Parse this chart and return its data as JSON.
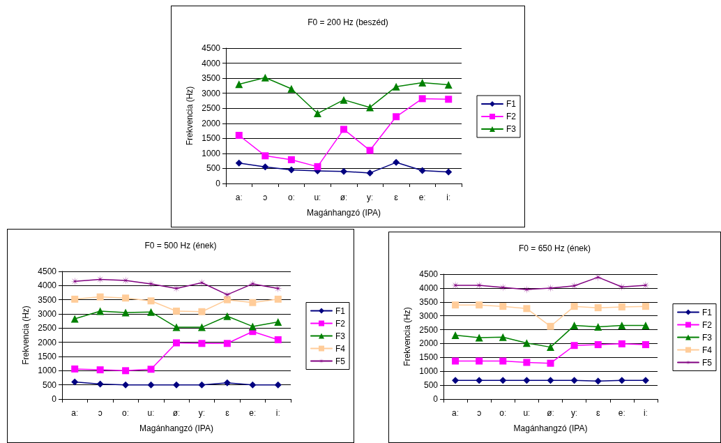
{
  "chart_data": [
    {
      "type": "line",
      "title": "F0 = 200 Hz (beszéd)",
      "xlabel": "Magánhangzó (IPA)",
      "ylabel": "Frekvencia (Hz)",
      "categories": [
        "aː",
        "ɔ",
        "oː",
        "uː",
        "øː",
        "yː",
        "ɛ",
        "eː",
        "iː"
      ],
      "ylim": [
        0,
        4500
      ],
      "yticks": [
        0,
        500,
        1000,
        1500,
        2000,
        2500,
        3000,
        3500,
        4000,
        4500
      ],
      "grid": "y",
      "legend": "right",
      "line_style": "solid",
      "series": [
        {
          "name": "F1",
          "color": "#000080",
          "marker": "diamond",
          "values": [
            680,
            550,
            450,
            420,
            400,
            350,
            700,
            430,
            380
          ]
        },
        {
          "name": "F2",
          "color": "#ff00ff",
          "marker": "square",
          "values": [
            1600,
            920,
            790,
            560,
            1800,
            1100,
            2220,
            2820,
            2800
          ]
        },
        {
          "name": "F3",
          "color": "#008000",
          "marker": "triangle",
          "values": [
            3300,
            3520,
            3150,
            2330,
            2780,
            2530,
            3220,
            3350,
            3280
          ]
        }
      ]
    },
    {
      "type": "line",
      "title": "F0 = 500 Hz (ének)",
      "xlabel": "Magánhangzó (IPA)",
      "ylabel": "Frekvencia (Hz)",
      "categories": [
        "aː",
        "ɔ",
        "oː",
        "uː",
        "øː",
        "yː",
        "ɛ",
        "eː",
        "iː"
      ],
      "ylim": [
        0,
        4500
      ],
      "yticks": [
        0,
        500,
        1000,
        1500,
        2000,
        2500,
        3000,
        3500,
        4000,
        4500
      ],
      "grid": "y",
      "legend": "right",
      "line_style": "solid",
      "series": [
        {
          "name": "F1",
          "color": "#000080",
          "marker": "diamond",
          "values": [
            600,
            530,
            500,
            500,
            500,
            500,
            570,
            500,
            500
          ]
        },
        {
          "name": "F2",
          "color": "#ff00ff",
          "marker": "square",
          "values": [
            1060,
            1030,
            1000,
            1050,
            1980,
            1960,
            1960,
            2380,
            2090
          ]
        },
        {
          "name": "F3",
          "color": "#008000",
          "marker": "triangle",
          "values": [
            2830,
            3100,
            3050,
            3070,
            2530,
            2530,
            2920,
            2560,
            2720
          ]
        },
        {
          "name": "F4",
          "color": "#ffcc99",
          "marker": "square",
          "values": [
            3520,
            3600,
            3560,
            3460,
            3100,
            3080,
            3500,
            3400,
            3520
          ]
        },
        {
          "name": "F5",
          "color": "#800080",
          "marker": "star",
          "values": [
            4150,
            4220,
            4180,
            4060,
            3900,
            4100,
            3680,
            4060,
            3900
          ]
        }
      ]
    },
    {
      "type": "line",
      "title": "F0 = 650 Hz (ének)",
      "xlabel": "Magánhangzó (IPA)",
      "ylabel": "Frekvencia (Hz)",
      "categories": [
        "aː",
        "ɔ",
        "oː",
        "uː",
        "øː",
        "yː",
        "ɛ",
        "eː",
        "iː"
      ],
      "ylim": [
        0,
        4500
      ],
      "yticks": [
        0,
        500,
        1000,
        1500,
        2000,
        2500,
        3000,
        3500,
        4000,
        4500
      ],
      "grid": "y",
      "legend": "right",
      "line_style": "solid",
      "series": [
        {
          "name": "F1",
          "color": "#000080",
          "marker": "diamond",
          "values": [
            670,
            670,
            670,
            670,
            670,
            670,
            650,
            670,
            670
          ]
        },
        {
          "name": "F2",
          "color": "#ff00ff",
          "marker": "square",
          "values": [
            1370,
            1370,
            1370,
            1320,
            1290,
            1930,
            1960,
            1990,
            1960
          ]
        },
        {
          "name": "F3",
          "color": "#008000",
          "marker": "triangle",
          "values": [
            2300,
            2210,
            2230,
            2020,
            1870,
            2650,
            2600,
            2650,
            2650
          ]
        },
        {
          "name": "F4",
          "color": "#ffcc99",
          "marker": "square",
          "values": [
            3390,
            3390,
            3340,
            3260,
            2620,
            3340,
            3290,
            3320,
            3340
          ]
        },
        {
          "name": "F5",
          "color": "#800080",
          "marker": "star",
          "values": [
            4100,
            4100,
            4020,
            3950,
            4000,
            4080,
            4390,
            4040,
            4100
          ]
        }
      ]
    }
  ]
}
